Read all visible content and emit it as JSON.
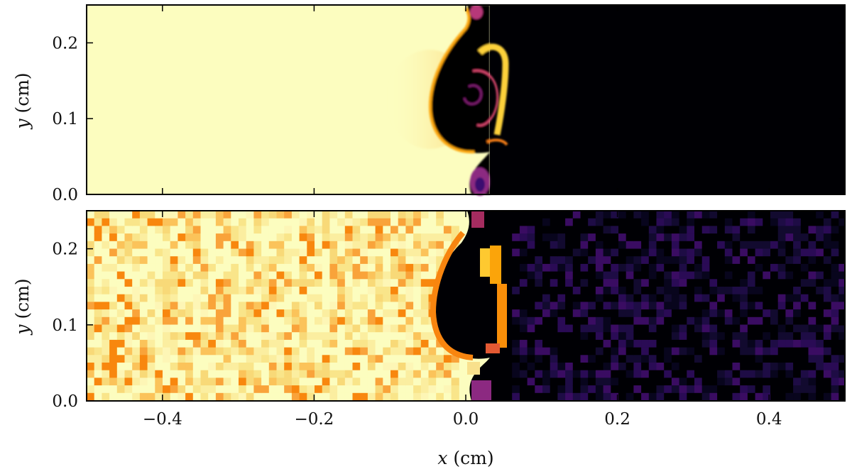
{
  "colors": {
    "hot": "#fcfdbf",
    "cold": "#000004",
    "mid": "#fca50a",
    "noise_dark": "#2a0a4a",
    "noise_mid": "#f98e09",
    "frame": "#000000"
  },
  "chart_data": [
    {
      "type": "heatmap",
      "panel": "top",
      "colormap": "inferno",
      "xlim": [
        -0.5,
        0.5
      ],
      "ylim": [
        0.0,
        0.25
      ],
      "ylabel_var": "y",
      "ylabel_unit": "(cm)",
      "yticks": [
        0.0,
        0.1,
        0.2
      ],
      "ytick_labels": [
        "0.0",
        "0.1",
        "0.2"
      ],
      "xticks": [
        -0.4,
        -0.2,
        0.0,
        0.2,
        0.4
      ],
      "show_xtick_labels": false,
      "interface_x": 0.03,
      "smooth": true
    },
    {
      "type": "heatmap",
      "panel": "bottom",
      "colormap": "inferno",
      "xlim": [
        -0.5,
        0.5
      ],
      "ylim": [
        0.0,
        0.25
      ],
      "ylabel_var": "y",
      "ylabel_unit": "(cm)",
      "yticks": [
        0.0,
        0.1,
        0.2
      ],
      "ytick_labels": [
        "0.0",
        "0.1",
        "0.2"
      ],
      "xticks": [
        -0.4,
        -0.2,
        0.0,
        0.2,
        0.4
      ],
      "xtick_labels": [
        "−0.4",
        "−0.2",
        "0.0",
        "0.2",
        "0.4"
      ],
      "xlabel_var": "x",
      "xlabel_unit": "(cm)",
      "interface_x": 0.03,
      "smooth": false
    }
  ]
}
